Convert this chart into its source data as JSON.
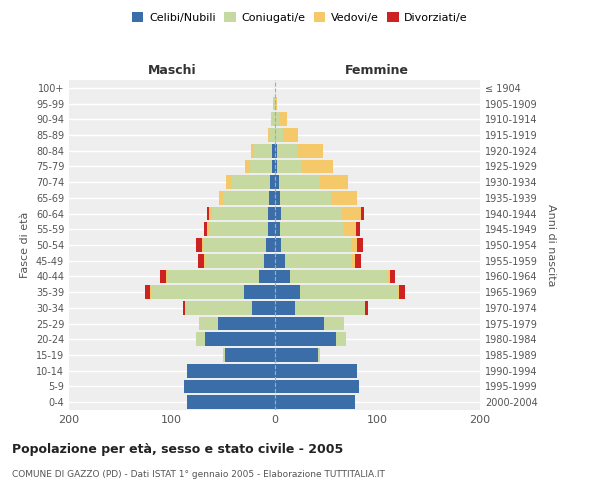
{
  "age_groups": [
    "0-4",
    "5-9",
    "10-14",
    "15-19",
    "20-24",
    "25-29",
    "30-34",
    "35-39",
    "40-44",
    "45-49",
    "50-54",
    "55-59",
    "60-64",
    "65-69",
    "70-74",
    "75-79",
    "80-84",
    "85-89",
    "90-94",
    "95-99",
    "100+"
  ],
  "birth_years": [
    "2000-2004",
    "1995-1999",
    "1990-1994",
    "1985-1989",
    "1980-1984",
    "1975-1979",
    "1970-1974",
    "1965-1969",
    "1960-1964",
    "1955-1959",
    "1950-1954",
    "1945-1949",
    "1940-1944",
    "1935-1939",
    "1930-1934",
    "1925-1929",
    "1920-1924",
    "1915-1919",
    "1910-1914",
    "1905-1909",
    "≤ 1904"
  ],
  "male": {
    "celibi": [
      85,
      88,
      85,
      48,
      68,
      55,
      22,
      30,
      15,
      10,
      8,
      6,
      6,
      5,
      4,
      2,
      2,
      0,
      0,
      0,
      0
    ],
    "coniugati": [
      0,
      0,
      0,
      2,
      8,
      18,
      65,
      90,
      90,
      58,
      62,
      58,
      55,
      45,
      38,
      22,
      18,
      5,
      3,
      1,
      0
    ],
    "vedovi": [
      0,
      0,
      0,
      0,
      0,
      0,
      0,
      1,
      1,
      1,
      1,
      2,
      3,
      4,
      5,
      5,
      3,
      1,
      0,
      0,
      0
    ],
    "divorziati": [
      0,
      0,
      0,
      0,
      0,
      0,
      2,
      5,
      5,
      5,
      5,
      3,
      2,
      0,
      0,
      0,
      0,
      0,
      0,
      0,
      0
    ]
  },
  "female": {
    "nubili": [
      78,
      82,
      80,
      42,
      60,
      48,
      20,
      25,
      15,
      10,
      6,
      5,
      6,
      5,
      4,
      2,
      2,
      0,
      0,
      0,
      0
    ],
    "coniugate": [
      0,
      0,
      0,
      2,
      10,
      20,
      68,
      95,
      95,
      65,
      68,
      62,
      60,
      50,
      40,
      25,
      20,
      8,
      4,
      1,
      0
    ],
    "vedove": [
      0,
      0,
      0,
      0,
      0,
      0,
      0,
      1,
      2,
      3,
      6,
      12,
      18,
      25,
      28,
      30,
      25,
      15,
      8,
      1,
      0
    ],
    "divorziate": [
      0,
      0,
      0,
      0,
      0,
      0,
      3,
      6,
      5,
      6,
      6,
      4,
      3,
      0,
      0,
      0,
      0,
      0,
      0,
      0,
      0
    ]
  },
  "colors": {
    "celibi": "#3b6ea8",
    "coniugati": "#c5d9a0",
    "vedovi": "#f5c96a",
    "divorziati": "#cc2222"
  },
  "xlim": 200,
  "title": "Popolazione per età, sesso e stato civile - 2005",
  "subtitle": "COMUNE DI GAZZO (PD) - Dati ISTAT 1° gennaio 2005 - Elaborazione TUTTITALIA.IT",
  "ylabel_left": "Fasce di età",
  "ylabel_right": "Anni di nascita",
  "xlabel_left": "Maschi",
  "xlabel_right": "Femmine",
  "bg_color": "#ffffff",
  "plot_bg_color": "#eeeeee",
  "grid_color": "#ffffff"
}
